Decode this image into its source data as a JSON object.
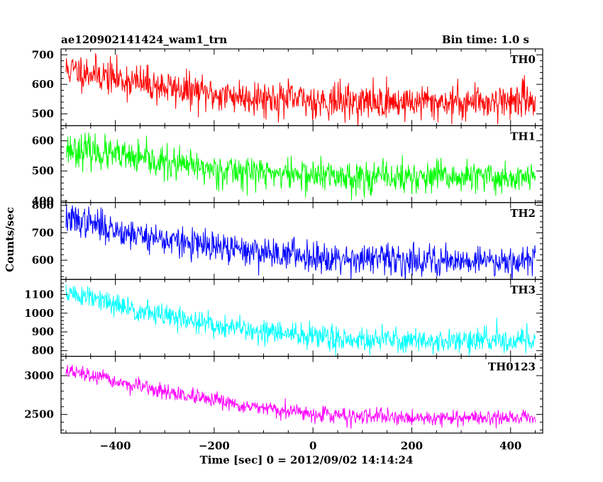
{
  "header": {
    "title": "ae120902141424_wam1_trn",
    "bin_time": "Bin time: 1.0 s"
  },
  "chart_data": {
    "type": "line",
    "xlabel": "Time [sec] 0 = 2012/09/02 14:14:24",
    "ylabel": "Counts/sec",
    "xlim": [
      -510,
      465
    ],
    "x_range": [
      -500,
      450
    ],
    "x_ticks": [
      -400,
      -200,
      0,
      200,
      400
    ],
    "x_tick_labels": [
      "−400",
      "−200",
      "0",
      "200",
      "400"
    ],
    "grid": false,
    "panels": [
      {
        "name": "TH0",
        "color": "#ff0000",
        "ylim": [
          460,
          720
        ],
        "y_ticks": [
          500,
          600,
          700
        ],
        "trend": [
          [
            -500,
            650
          ],
          [
            -450,
            640
          ],
          [
            -400,
            620
          ],
          [
            -300,
            590
          ],
          [
            -200,
            565
          ],
          [
            -100,
            555
          ],
          [
            0,
            545
          ],
          [
            100,
            540
          ],
          [
            200,
            540
          ],
          [
            300,
            540
          ],
          [
            400,
            545
          ],
          [
            450,
            550
          ]
        ],
        "noise_sd": 30,
        "seed": 11
      },
      {
        "name": "TH1",
        "color": "#00ff00",
        "ylim": [
          395,
          650
        ],
        "y_ticks": [
          400,
          500,
          600
        ],
        "trend": [
          [
            -500,
            575
          ],
          [
            -450,
            565
          ],
          [
            -400,
            550
          ],
          [
            -300,
            525
          ],
          [
            -200,
            505
          ],
          [
            -100,
            495
          ],
          [
            0,
            485
          ],
          [
            100,
            480
          ],
          [
            200,
            478
          ],
          [
            300,
            478
          ],
          [
            400,
            478
          ],
          [
            450,
            478
          ]
        ],
        "noise_sd": 27,
        "seed": 23
      },
      {
        "name": "TH2",
        "color": "#0000ff",
        "ylim": [
          530,
          810
        ],
        "y_ticks": [
          600,
          700,
          800
        ],
        "trend": [
          [
            -500,
            750
          ],
          [
            -450,
            735
          ],
          [
            -400,
            710
          ],
          [
            -300,
            675
          ],
          [
            -200,
            645
          ],
          [
            -100,
            630
          ],
          [
            0,
            615
          ],
          [
            100,
            605
          ],
          [
            200,
            600
          ],
          [
            300,
            600
          ],
          [
            400,
            600
          ],
          [
            450,
            602
          ]
        ],
        "noise_sd": 28,
        "seed": 37
      },
      {
        "name": "TH3",
        "color": "#00ffff",
        "ylim": [
          770,
          1180
        ],
        "y_ticks": [
          800,
          900,
          1000,
          1100
        ],
        "trend": [
          [
            -500,
            1110
          ],
          [
            -450,
            1080
          ],
          [
            -400,
            1040
          ],
          [
            -300,
            985
          ],
          [
            -200,
            935
          ],
          [
            -100,
            900
          ],
          [
            0,
            875
          ],
          [
            100,
            860
          ],
          [
            200,
            855
          ],
          [
            300,
            850
          ],
          [
            400,
            855
          ],
          [
            450,
            860
          ]
        ],
        "noise_sd": 32,
        "seed": 51
      },
      {
        "name": "TH0123",
        "color": "#ff00ff",
        "ylim": [
          2260,
          3250
        ],
        "y_ticks": [
          2500,
          3000
        ],
        "trend": [
          [
            -500,
            3060
          ],
          [
            -450,
            3000
          ],
          [
            -400,
            2920
          ],
          [
            -300,
            2790
          ],
          [
            -200,
            2670
          ],
          [
            -100,
            2570
          ],
          [
            0,
            2510
          ],
          [
            100,
            2470
          ],
          [
            200,
            2460
          ],
          [
            300,
            2455
          ],
          [
            400,
            2460
          ],
          [
            450,
            2465
          ]
        ],
        "noise_sd": 48,
        "seed": 67
      }
    ]
  }
}
